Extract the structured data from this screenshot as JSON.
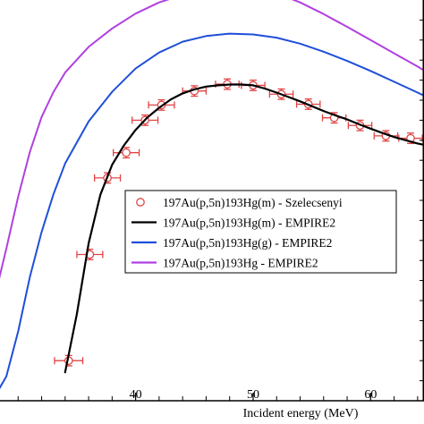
{
  "chart_data": {
    "type": "line",
    "title": "",
    "xlabel": "Incident energy (MeV)",
    "ylabel": "",
    "xlim": [
      28,
      65
    ],
    "ylim": [
      0,
      1
    ],
    "x_ticks": [
      40,
      50,
      60
    ],
    "x_tick_labels": [
      "40",
      "50",
      "60"
    ],
    "grid": false,
    "legend_position": "lower-right",
    "series": [
      {
        "name": "197Au(p,5n)193Hg(m) - Szelecsenyi",
        "kind": "scatter",
        "color": "#e04545",
        "x": [
          34.3,
          36.1,
          37.6,
          39.2,
          40.8,
          42.2,
          45.0,
          47.8,
          50.0,
          52.4,
          54.7,
          56.9,
          59.1,
          61.3,
          63.4
        ],
        "y": [
          0.1,
          0.365,
          0.556,
          0.619,
          0.7,
          0.738,
          0.773,
          0.79,
          0.787,
          0.765,
          0.74,
          0.706,
          0.687,
          0.661,
          0.655
        ],
        "xerr": [
          1.2,
          1.1,
          1.1,
          1.1,
          1.1,
          1.1,
          1.0,
          1.0,
          1.0,
          1.0,
          1.0,
          1.0,
          1.0,
          1.0,
          1.0
        ],
        "yerr": [
          0.013,
          0.013,
          0.013,
          0.013,
          0.013,
          0.013,
          0.013,
          0.013,
          0.013,
          0.013,
          0.013,
          0.013,
          0.013,
          0.013,
          0.013
        ]
      },
      {
        "name": "197Au(p,5n)193Hg(m) - EMPIRE2",
        "kind": "line",
        "color": "#000000",
        "x": [
          34.0,
          35.0,
          36.0,
          37.0,
          38.0,
          39.0,
          40.0,
          41.0,
          42.0,
          43.0,
          44.0,
          45.0,
          46.0,
          47.0,
          48.0,
          49.0,
          50.0,
          51.0,
          52.0,
          53.0,
          54.0,
          55.0,
          56.0,
          57.0,
          58.0,
          59.0,
          60.0,
          61.0,
          62.0,
          63.0,
          64.0,
          65.0
        ],
        "y": [
          0.071,
          0.216,
          0.393,
          0.514,
          0.589,
          0.637,
          0.676,
          0.707,
          0.731,
          0.752,
          0.767,
          0.777,
          0.784,
          0.787,
          0.789,
          0.789,
          0.787,
          0.779,
          0.769,
          0.758,
          0.747,
          0.735,
          0.723,
          0.712,
          0.702,
          0.69,
          0.679,
          0.668,
          0.658,
          0.65,
          0.642,
          0.636
        ]
      },
      {
        "name": "197Au(p,5n)193Hg(g) - EMPIRE2",
        "kind": "line",
        "color": "#1f4fd8",
        "x": [
          28.0,
          29.0,
          30.0,
          31.0,
          32.0,
          33.0,
          34.0,
          36.0,
          38.0,
          40.0,
          42.0,
          44.0,
          46.0,
          48.0,
          50.0,
          52.0,
          54.0,
          56.0,
          58.0,
          60.0,
          62.0,
          64.0,
          65.0
        ],
        "y": [
          0.01,
          0.061,
          0.173,
          0.309,
          0.421,
          0.515,
          0.592,
          0.697,
          0.771,
          0.829,
          0.869,
          0.896,
          0.91,
          0.916,
          0.914,
          0.906,
          0.891,
          0.871,
          0.848,
          0.823,
          0.796,
          0.769,
          0.755
        ]
      },
      {
        "name": "197Au(p,5n)193Hg - EMPIRE2",
        "kind": "line",
        "color": "#b040e0",
        "x": [
          28.0,
          29.0,
          30.0,
          31.0,
          32.0,
          33.0,
          34.0,
          36.0,
          38.0,
          40.0,
          42.0,
          44.0,
          46.0,
          48.0,
          50.0,
          52.0,
          54.0,
          56.0,
          58.0,
          60.0,
          62.0,
          64.0,
          65.0
        ],
        "y": [
          0.258,
          0.38,
          0.509,
          0.621,
          0.708,
          0.77,
          0.819,
          0.883,
          0.929,
          0.966,
          0.994,
          1.013,
          1.027,
          1.035,
          1.032,
          1.017,
          0.994,
          0.965,
          0.933,
          0.9,
          0.867,
          0.834,
          0.816
        ]
      }
    ]
  }
}
